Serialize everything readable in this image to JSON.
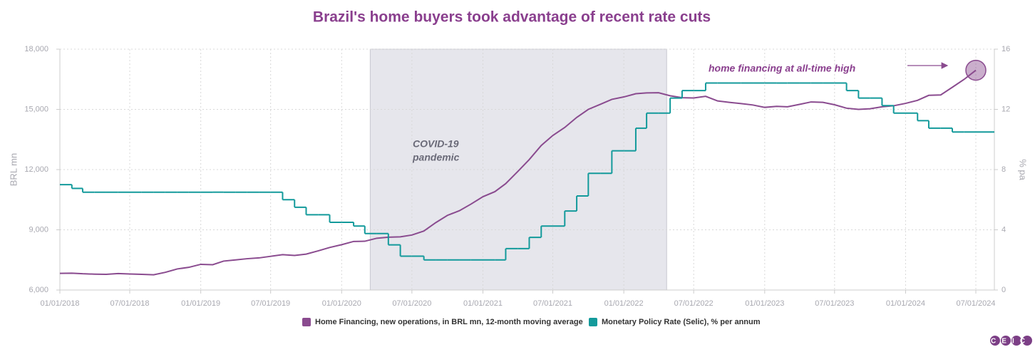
{
  "chart_data": {
    "type": "line",
    "title": "Brazil's home buyers took advantage of recent rate cuts",
    "y_label": "BRL mn",
    "y2_label": "% pa",
    "x": [
      "2018-01-01",
      "2018-02-01",
      "2018-03-01",
      "2018-04-01",
      "2018-05-01",
      "2018-06-01",
      "2018-07-01",
      "2018-08-01",
      "2018-09-01",
      "2018-10-01",
      "2018-11-01",
      "2018-12-01",
      "2019-01-01",
      "2019-02-01",
      "2019-03-01",
      "2019-04-01",
      "2019-05-01",
      "2019-06-01",
      "2019-07-01",
      "2019-08-01",
      "2019-09-01",
      "2019-10-01",
      "2019-11-01",
      "2019-12-01",
      "2020-01-01",
      "2020-02-01",
      "2020-03-01",
      "2020-04-01",
      "2020-05-01",
      "2020-06-01",
      "2020-07-01",
      "2020-08-01",
      "2020-09-01",
      "2020-10-01",
      "2020-11-01",
      "2020-12-01",
      "2021-01-01",
      "2021-02-01",
      "2021-03-01",
      "2021-04-01",
      "2021-05-01",
      "2021-06-01",
      "2021-07-01",
      "2021-08-01",
      "2021-09-01",
      "2021-10-01",
      "2021-11-01",
      "2021-12-01",
      "2022-01-01",
      "2022-02-01",
      "2022-03-01",
      "2022-04-01",
      "2022-05-01",
      "2022-06-01",
      "2022-07-01",
      "2022-08-01",
      "2022-09-01",
      "2022-10-01",
      "2022-11-01",
      "2022-12-01",
      "2023-01-01",
      "2023-02-01",
      "2023-03-01",
      "2023-04-01",
      "2023-05-01",
      "2023-06-01",
      "2023-07-01",
      "2023-08-01",
      "2023-09-01",
      "2023-10-01",
      "2023-11-01",
      "2023-12-01",
      "2024-01-01",
      "2024-02-01",
      "2024-03-01",
      "2024-04-01",
      "2024-05-01",
      "2024-06-01",
      "2024-07-01"
    ],
    "series": [
      {
        "name": "Home Financing, new operations, in BRL mn, 12-month moving average",
        "color": "#8a4b8f",
        "axis": "y",
        "values": [
          6830,
          6840,
          6810,
          6790,
          6780,
          6820,
          6800,
          6780,
          6760,
          6880,
          7050,
          7130,
          7280,
          7260,
          7440,
          7500,
          7560,
          7600,
          7680,
          7760,
          7720,
          7790,
          7950,
          8120,
          8260,
          8420,
          8430,
          8580,
          8630,
          8650,
          8740,
          8940,
          9360,
          9720,
          9950,
          10280,
          10650,
          10900,
          11300,
          11900,
          12500,
          13200,
          13700,
          14100,
          14600,
          15000,
          15250,
          15500,
          15620,
          15780,
          15820,
          15830,
          15680,
          15580,
          15570,
          15650,
          15420,
          15350,
          15290,
          15220,
          15100,
          15150,
          15130,
          15250,
          15370,
          15350,
          15230,
          15060,
          15000,
          15030,
          15130,
          15180,
          15300,
          15450,
          15700,
          15720,
          16100,
          16500,
          16950
        ]
      },
      {
        "name": "Monetary Policy Rate (Selic), % per annum",
        "color": "#139a9b",
        "axis": "y2",
        "step": true,
        "values": [
          7.0,
          6.75,
          6.5,
          6.5,
          6.5,
          6.5,
          6.5,
          6.5,
          6.5,
          6.5,
          6.5,
          6.5,
          6.5,
          6.5,
          6.5,
          6.5,
          6.5,
          6.5,
          6.5,
          6.0,
          5.5,
          5.0,
          5.0,
          4.5,
          4.5,
          4.25,
          3.75,
          3.75,
          3.0,
          2.25,
          2.25,
          2.0,
          2.0,
          2.0,
          2.0,
          2.0,
          2.0,
          2.0,
          2.75,
          2.75,
          3.5,
          4.25,
          4.25,
          5.25,
          6.25,
          7.75,
          7.75,
          9.25,
          9.25,
          10.75,
          11.75,
          11.75,
          12.75,
          13.25,
          13.25,
          13.75,
          13.75,
          13.75,
          13.75,
          13.75,
          13.75,
          13.75,
          13.75,
          13.75,
          13.75,
          13.75,
          13.75,
          13.25,
          12.75,
          12.75,
          12.25,
          11.75,
          11.75,
          11.25,
          10.75,
          10.75,
          10.5,
          10.5,
          10.5
        ]
      }
    ],
    "xlim": [
      "2018-01-01",
      "2024-08-18"
    ],
    "xticks": [
      {
        "value": "2018-01-01",
        "label": "01/01/2018"
      },
      {
        "value": "2018-07-01",
        "label": "07/01/2018"
      },
      {
        "value": "2019-01-01",
        "label": "01/01/2019"
      },
      {
        "value": "2019-07-01",
        "label": "07/01/2019"
      },
      {
        "value": "2020-01-01",
        "label": "01/01/2020"
      },
      {
        "value": "2020-07-01",
        "label": "07/01/2020"
      },
      {
        "value": "2021-01-01",
        "label": "01/01/2021"
      },
      {
        "value": "2021-07-01",
        "label": "07/01/2021"
      },
      {
        "value": "2022-01-01",
        "label": "01/01/2022"
      },
      {
        "value": "2022-07-01",
        "label": "07/01/2022"
      },
      {
        "value": "2023-01-01",
        "label": "01/01/2023"
      },
      {
        "value": "2023-07-01",
        "label": "07/01/2023"
      },
      {
        "value": "2024-01-01",
        "label": "01/01/2024"
      },
      {
        "value": "2024-07-01",
        "label": "07/01/2024"
      }
    ],
    "ylim": [
      6000,
      18000
    ],
    "yticks": [
      {
        "value": 6000,
        "label": "6,000"
      },
      {
        "value": 9000,
        "label": "9,000"
      },
      {
        "value": 12000,
        "label": "12,000"
      },
      {
        "value": 15000,
        "label": "15,000"
      },
      {
        "value": 18000,
        "label": "18,000"
      }
    ],
    "y2lim": [
      0,
      16
    ],
    "y2ticks": [
      0,
      4,
      8,
      12,
      16
    ],
    "grid": true,
    "legend": "bottom",
    "band": {
      "start": "2020-03-15",
      "end": "2022-04-22",
      "lines": [
        "COVID-19",
        "pandemic"
      ]
    },
    "annotation": "home financing at all-time high",
    "logo": "CEIC"
  }
}
